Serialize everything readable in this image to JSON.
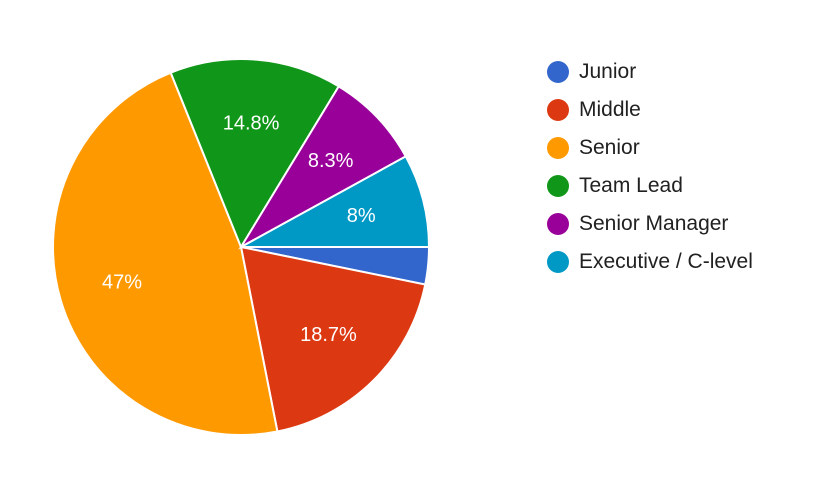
{
  "chart_data": {
    "type": "pie",
    "title": "",
    "legend_position": "right",
    "slices": [
      {
        "label": "Junior",
        "value": 3.2,
        "display": "",
        "color": "#3366cc"
      },
      {
        "label": "Middle",
        "value": 18.7,
        "display": "18.7%",
        "color": "#dc3912"
      },
      {
        "label": "Senior",
        "value": 47,
        "display": "47%",
        "color": "#ff9900"
      },
      {
        "label": "Team Lead",
        "value": 14.8,
        "display": "14.8%",
        "color": "#109618"
      },
      {
        "label": "Senior Manager",
        "value": 8.3,
        "display": "8.3%",
        "color": "#990099"
      },
      {
        "label": "Executive / C-level",
        "value": 8,
        "display": "8%",
        "color": "#0099c6"
      }
    ]
  }
}
